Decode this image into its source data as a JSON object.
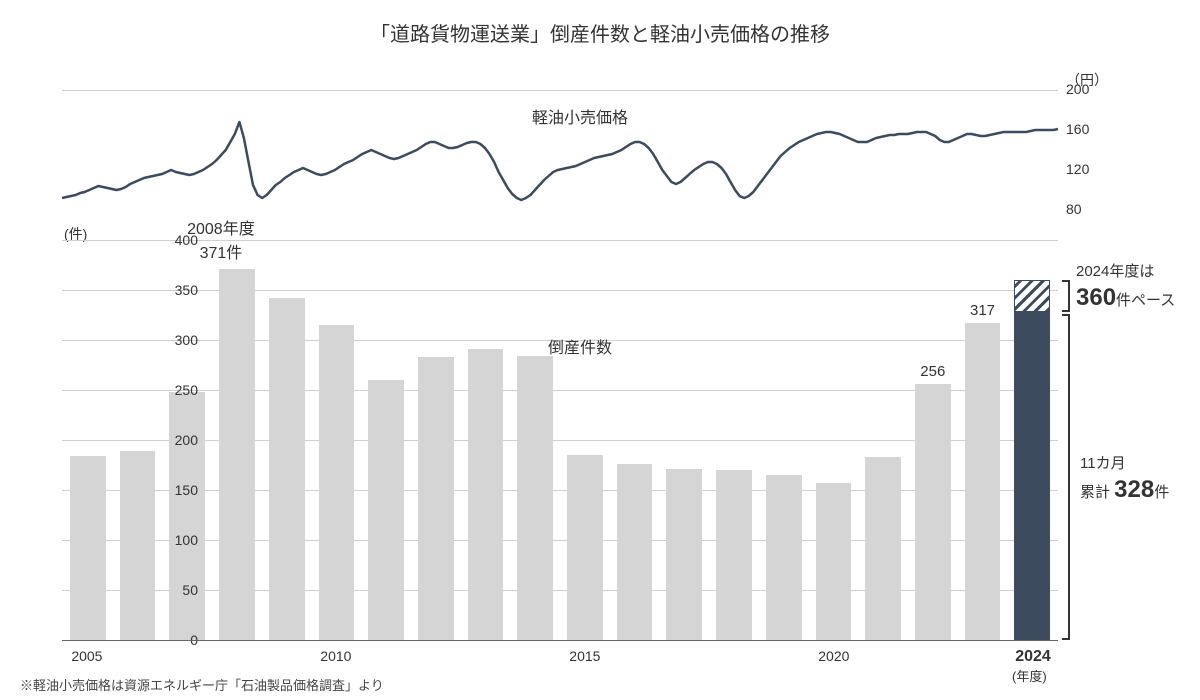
{
  "title": "「道路貨物運送業」倒産件数と軽油小売価格の推移",
  "footnote": "※軽油小売価格は資源エネルギー庁「石油製品価格調査」より",
  "colors": {
    "background": "#ffffff",
    "text": "#333333",
    "grid": "#d0d0d0",
    "bar_grey": "#d5d5d5",
    "bar_dark": "#3d4b5f",
    "line": "#3d4b5f"
  },
  "line_chart": {
    "label": "軽油小売価格",
    "unit": "（円）",
    "ylim": [
      80,
      200
    ],
    "yticks": [
      80,
      120,
      160,
      200
    ],
    "stroke_width": 2.5,
    "values": [
      92,
      93,
      94,
      95,
      97,
      98,
      100,
      102,
      104,
      103,
      102,
      101,
      100,
      101,
      103,
      106,
      108,
      110,
      112,
      113,
      114,
      115,
      116,
      118,
      120,
      118,
      117,
      116,
      115,
      116,
      118,
      120,
      123,
      126,
      130,
      135,
      140,
      148,
      156,
      168,
      152,
      128,
      105,
      95,
      92,
      95,
      100,
      105,
      108,
      112,
      115,
      118,
      120,
      122,
      120,
      118,
      116,
      115,
      116,
      118,
      120,
      123,
      126,
      128,
      130,
      133,
      136,
      138,
      140,
      138,
      136,
      134,
      132,
      131,
      132,
      134,
      136,
      138,
      140,
      143,
      146,
      148,
      148,
      146,
      144,
      142,
      142,
      143,
      145,
      147,
      148,
      148,
      146,
      142,
      136,
      128,
      118,
      110,
      102,
      96,
      92,
      90,
      92,
      95,
      100,
      105,
      110,
      114,
      118,
      120,
      121,
      122,
      123,
      124,
      126,
      128,
      130,
      132,
      133,
      134,
      135,
      136,
      138,
      140,
      143,
      146,
      148,
      148,
      146,
      142,
      136,
      128,
      120,
      114,
      108,
      106,
      108,
      112,
      116,
      120,
      123,
      126,
      128,
      128,
      126,
      122,
      116,
      108,
      100,
      94,
      92,
      94,
      98,
      104,
      110,
      116,
      122,
      128,
      134,
      138,
      142,
      145,
      148,
      150,
      152,
      154,
      156,
      157,
      158,
      158,
      157,
      156,
      154,
      152,
      150,
      148,
      148,
      148,
      150,
      152,
      153,
      154,
      155,
      155,
      156,
      156,
      156,
      157,
      158,
      158,
      158,
      156,
      154,
      150,
      148,
      148,
      150,
      152,
      154,
      156,
      156,
      155,
      154,
      154,
      155,
      156,
      157,
      158,
      158,
      158,
      158,
      158,
      158,
      159,
      160,
      160,
      160,
      160,
      160,
      161
    ]
  },
  "bar_chart": {
    "label": "倒産件数",
    "unit": "(件)",
    "ylim": [
      0,
      400
    ],
    "ytick_step": 50,
    "yticks": [
      0,
      50,
      100,
      150,
      200,
      250,
      300,
      350,
      400
    ],
    "years": [
      "2005",
      "",
      "",
      "",
      "",
      "2010",
      "",
      "",
      "",
      "",
      "2015",
      "",
      "",
      "",
      "",
      "2020",
      "",
      "",
      "",
      "2024"
    ],
    "bars": [
      {
        "year": 2005,
        "value": 184,
        "color": "#d5d5d5"
      },
      {
        "year": 2006,
        "value": 189,
        "color": "#d5d5d5"
      },
      {
        "year": 2007,
        "value": 248,
        "color": "#d5d5d5"
      },
      {
        "year": 2008,
        "value": 371,
        "color": "#d5d5d5",
        "peak_label": "2008年度\n371件"
      },
      {
        "year": 2009,
        "value": 342,
        "color": "#d5d5d5"
      },
      {
        "year": 2010,
        "value": 315,
        "color": "#d5d5d5"
      },
      {
        "year": 2011,
        "value": 260,
        "color": "#d5d5d5"
      },
      {
        "year": 2012,
        "value": 283,
        "color": "#d5d5d5"
      },
      {
        "year": 2013,
        "value": 291,
        "color": "#d5d5d5"
      },
      {
        "year": 2014,
        "value": 284,
        "color": "#d5d5d5"
      },
      {
        "year": 2015,
        "value": 185,
        "color": "#d5d5d5"
      },
      {
        "year": 2016,
        "value": 176,
        "color": "#d5d5d5"
      },
      {
        "year": 2017,
        "value": 171,
        "color": "#d5d5d5"
      },
      {
        "year": 2018,
        "value": 170,
        "color": "#d5d5d5"
      },
      {
        "year": 2019,
        "value": 165,
        "color": "#d5d5d5"
      },
      {
        "year": 2020,
        "value": 157,
        "color": "#d5d5d5"
      },
      {
        "year": 2021,
        "value": 183,
        "color": "#d5d5d5"
      },
      {
        "year": 2022,
        "value": 256,
        "color": "#d5d5d5",
        "value_label": "256"
      },
      {
        "year": 2023,
        "value": 317,
        "color": "#d5d5d5",
        "value_label": "317"
      },
      {
        "year": 2024,
        "value": 328,
        "color": "#3d4b5f",
        "extra": 360
      }
    ],
    "x_unit": "(年度)"
  },
  "annotations": {
    "pace_prefix": "2024年度は",
    "pace_value": "360",
    "pace_suffix": "件ペース",
    "cum_prefix": "11カ月",
    "cum_mid": "累計 ",
    "cum_value": "328",
    "cum_suffix": "件"
  }
}
